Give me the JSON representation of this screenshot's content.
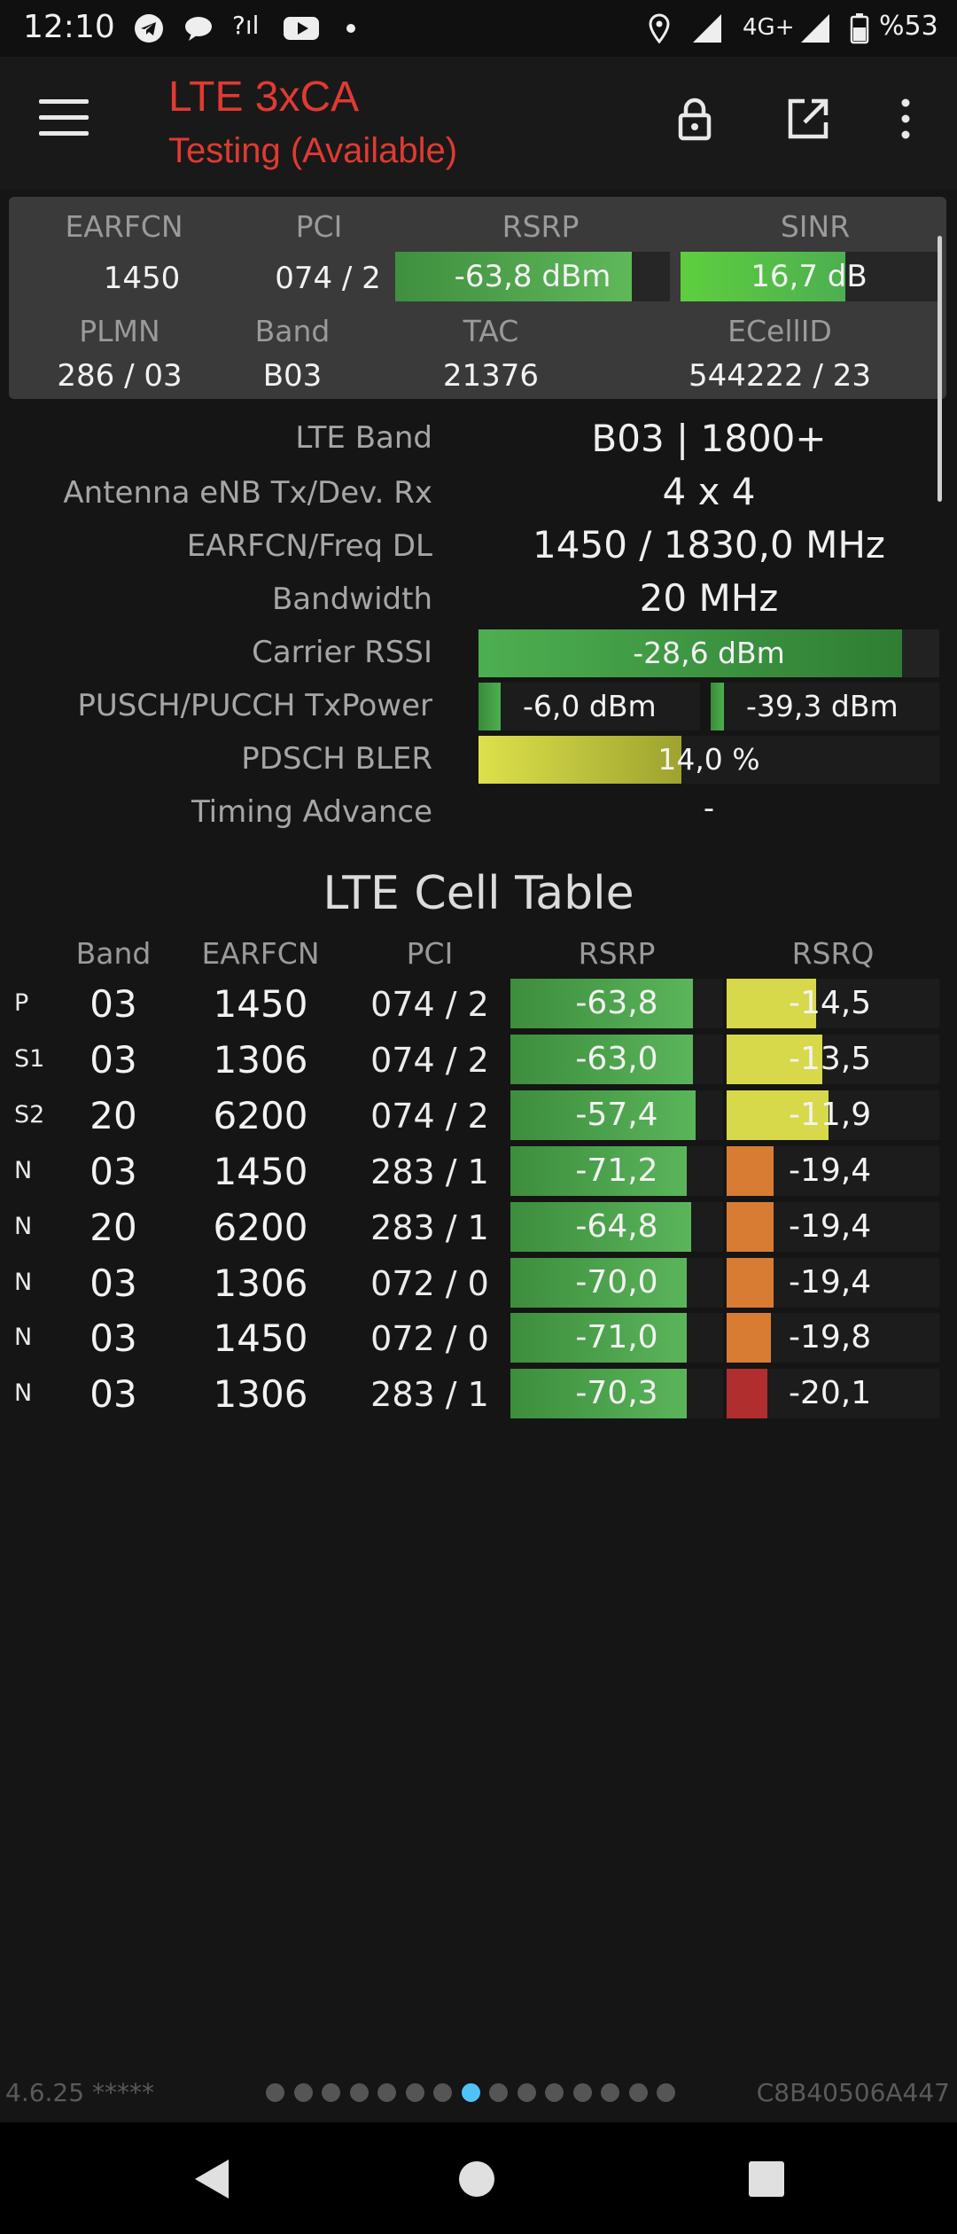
{
  "status_bar": {
    "time": "12:10",
    "network": "4G+",
    "battery": "%53",
    "icons": [
      "telegram-icon",
      "chat-icon",
      "signal-question-icon",
      "youtube-icon",
      "dot-icon",
      "location-icon",
      "signal-icon",
      "signal-icon",
      "battery-icon"
    ]
  },
  "app_bar": {
    "title": "LTE 3xCA",
    "subtitle": "Testing (Available)",
    "actions": [
      "lock-icon",
      "open-external-icon",
      "more-vert-icon"
    ]
  },
  "summary": {
    "headers": {
      "earfcn": "EARFCN",
      "pci": "PCI",
      "rsrp": "RSRP",
      "sinr": "SINR",
      "plmn": "PLMN",
      "band": "Band",
      "tac": "TAC",
      "ecellid": "ECellID"
    },
    "earfcn": "1450",
    "pci": "074 / 2",
    "rsrp": {
      "text": "-63,8 dBm",
      "level": 0.86
    },
    "sinr": {
      "text": "16,7 dB",
      "level": 0.64
    },
    "plmn": "286 / 03",
    "band": "B03",
    "tac": "21376",
    "ecellid": "544222 / 23"
  },
  "details": {
    "lte_band": {
      "label": "LTE Band",
      "value": "B03 | 1800+"
    },
    "antenna": {
      "label": "Antenna eNB Tx/Dev. Rx",
      "value": "4 x 4"
    },
    "earfcn_freq": {
      "label": "EARFCN/Freq DL",
      "value": "1450 / 1830,0 MHz"
    },
    "bandwidth": {
      "label": "Bandwidth",
      "value": "20 MHz"
    },
    "carrier_rssi": {
      "label": "Carrier RSSI",
      "value": "-28,6 dBm",
      "level": 0.92
    },
    "txpower": {
      "label": "PUSCH/PUCCH TxPower",
      "pusch": "-6,0 dBm",
      "pucch": "-39,3 dBm",
      "pusch_level": 0.1,
      "pucch_level": 0.06
    },
    "bler": {
      "label": "PDSCH BLER",
      "value": "14,0 %",
      "level": 0.44
    },
    "timing_advance": {
      "label": "Timing Advance",
      "value": "-"
    }
  },
  "cell_table": {
    "title": "LTE Cell Table",
    "headers": [
      "Band",
      "EARFCN",
      "PCI",
      "RSRP",
      "RSRQ"
    ],
    "rows": [
      {
        "type": "P",
        "band": "03",
        "earfcn": "1450",
        "pci": "074 / 2",
        "rsrp": "-63,8",
        "rsrp_level": 0.86,
        "rsrq": "-14,5",
        "rsrq_level": 0.42,
        "rsrq_color": "#d7d84a"
      },
      {
        "type": "S1",
        "band": "03",
        "earfcn": "1306",
        "pci": "074 / 2",
        "rsrp": "-63,0",
        "rsrp_level": 0.86,
        "rsrq": "-13,5",
        "rsrq_level": 0.45,
        "rsrq_color": "#d7d84a"
      },
      {
        "type": "S2",
        "band": "20",
        "earfcn": "6200",
        "pci": "074 / 2",
        "rsrp": "-57,4",
        "rsrp_level": 0.87,
        "rsrq": "-11,9",
        "rsrq_level": 0.48,
        "rsrq_color": "#d7d84a"
      },
      {
        "type": "N",
        "band": "03",
        "earfcn": "1450",
        "pci": "283 / 1",
        "rsrp": "-71,2",
        "rsrp_level": 0.83,
        "rsrq": "-19,4",
        "rsrq_level": 0.22,
        "rsrq_color": "#d87c33"
      },
      {
        "type": "N",
        "band": "20",
        "earfcn": "6200",
        "pci": "283 / 1",
        "rsrp": "-64,8",
        "rsrp_level": 0.85,
        "rsrq": "-19,4",
        "rsrq_level": 0.22,
        "rsrq_color": "#d87c33"
      },
      {
        "type": "N",
        "band": "03",
        "earfcn": "1306",
        "pci": "072 / 0",
        "rsrp": "-70,0",
        "rsrp_level": 0.83,
        "rsrq": "-19,4",
        "rsrq_level": 0.22,
        "rsrq_color": "#d87c33"
      },
      {
        "type": "N",
        "band": "03",
        "earfcn": "1450",
        "pci": "072 / 0",
        "rsrp": "-71,0",
        "rsrp_level": 0.83,
        "rsrq": "-19,8",
        "rsrq_level": 0.21,
        "rsrq_color": "#d87c33"
      },
      {
        "type": "N",
        "band": "03",
        "earfcn": "1306",
        "pci": "283 / 1",
        "rsrp": "-70,3",
        "rsrp_level": 0.83,
        "rsrq": "-20,1",
        "rsrq_level": 0.19,
        "rsrq_color": "#b02e2e"
      }
    ]
  },
  "footer": {
    "version": "4.6.25 *****",
    "device_id": "C8B40506A447",
    "pages": 15,
    "active_page": 7
  },
  "colors": {
    "accent": "#e03a32",
    "green": "#4caf50",
    "yellow": "#d7d84a",
    "orange": "#d87c33",
    "red": "#b02e2e",
    "dot_active": "#4fc3f7"
  }
}
